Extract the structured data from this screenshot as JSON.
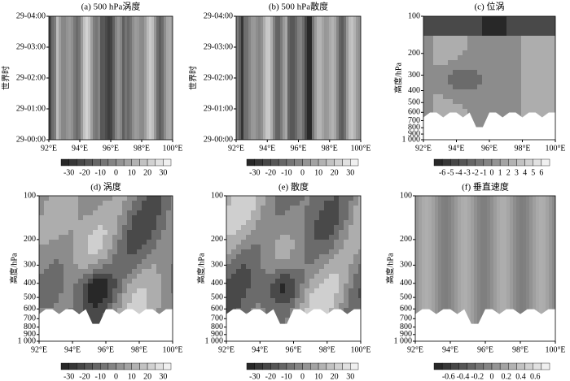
{
  "chart_data": [
    {
      "type": "contour",
      "title": "(a) 500 hPa涡度",
      "ylabel": "世界时",
      "xlim": [
        92,
        100
      ],
      "xticks": [
        {
          "value": 92,
          "label": "92°E"
        },
        {
          "value": 94,
          "label": "94°E"
        },
        {
          "value": 96,
          "label": "96°E"
        },
        {
          "value": 98,
          "label": "98°E"
        },
        {
          "value": 100,
          "label": "100°E"
        }
      ],
      "ylim": [
        0,
        4
      ],
      "yticks": [
        {
          "value": 0,
          "label": "29-00:00"
        },
        {
          "value": 1,
          "label": "29-01:00"
        },
        {
          "value": 2,
          "label": "29-02:00"
        },
        {
          "value": 3,
          "label": "29-03:00"
        },
        {
          "value": 4,
          "label": "29-04:00"
        }
      ],
      "colorbar_lim": [
        -35,
        35
      ],
      "colorbar_ticks": [
        -30,
        -20,
        -10,
        0,
        10,
        20,
        30
      ]
    },
    {
      "type": "contour",
      "title": "(b) 500 hPa散度",
      "ylabel": "世界时",
      "xlim": [
        92,
        100
      ],
      "xticks": [
        {
          "value": 92,
          "label": "92°E"
        },
        {
          "value": 94,
          "label": "94°E"
        },
        {
          "value": 96,
          "label": "96°E"
        },
        {
          "value": 98,
          "label": "98°E"
        },
        {
          "value": 100,
          "label": "100°E"
        }
      ],
      "ylim": [
        0,
        4
      ],
      "yticks": [
        {
          "value": 0,
          "label": "29-00:00"
        },
        {
          "value": 1,
          "label": "29-01:00"
        },
        {
          "value": 2,
          "label": "29-02:00"
        },
        {
          "value": 3,
          "label": "29-03:00"
        },
        {
          "value": 4,
          "label": "29-04:00"
        }
      ],
      "colorbar_lim": [
        -35,
        35
      ],
      "colorbar_ticks": [
        -30,
        -20,
        -10,
        0,
        10,
        20,
        30
      ]
    },
    {
      "type": "contour",
      "title": "(c) 位涡",
      "ylabel": "高度/hPa",
      "log_y": true,
      "xlim": [
        92,
        100
      ],
      "xticks": [
        {
          "value": 92,
          "label": "92°E"
        },
        {
          "value": 94,
          "label": "94°E"
        },
        {
          "value": 96,
          "label": "96°E"
        },
        {
          "value": 98,
          "label": "98°E"
        },
        {
          "value": 100,
          "label": "100°E"
        }
      ],
      "ylim": [
        1000,
        100
      ],
      "yticks": [
        100,
        200,
        300,
        400,
        500,
        600,
        700,
        800,
        900,
        {
          "value": 1000,
          "label": "1 000"
        }
      ],
      "colorbar_lim": [
        -7,
        7
      ],
      "colorbar_ticks": [
        -6,
        -5,
        -4,
        -3,
        -2,
        -1,
        0,
        1,
        2,
        3,
        4,
        5,
        6
      ]
    },
    {
      "type": "contour",
      "title": "(d) 涡度",
      "ylabel": "高度/hPa",
      "log_y": true,
      "xlim": [
        92,
        100
      ],
      "xticks": [
        {
          "value": 92,
          "label": "92°E"
        },
        {
          "value": 94,
          "label": "94°E"
        },
        {
          "value": 96,
          "label": "96°E"
        },
        {
          "value": 98,
          "label": "98°E"
        },
        {
          "value": 100,
          "label": "100°E"
        }
      ],
      "ylim": [
        1000,
        100
      ],
      "yticks": [
        100,
        200,
        300,
        400,
        500,
        600,
        700,
        800,
        900,
        {
          "value": 1000,
          "label": "1 000"
        }
      ],
      "colorbar_lim": [
        -35,
        35
      ],
      "colorbar_ticks": [
        -30,
        -20,
        -10,
        0,
        10,
        20,
        30
      ]
    },
    {
      "type": "contour",
      "title": "(e) 散度",
      "ylabel": "高度/hPa",
      "log_y": true,
      "xlim": [
        92,
        100
      ],
      "xticks": [
        {
          "value": 92,
          "label": "92°E"
        },
        {
          "value": 94,
          "label": "94°E"
        },
        {
          "value": 96,
          "label": "96°E"
        },
        {
          "value": 98,
          "label": "98°E"
        },
        {
          "value": 100,
          "label": "100°E"
        }
      ],
      "ylim": [
        1000,
        100
      ],
      "yticks": [
        100,
        200,
        300,
        400,
        500,
        600,
        700,
        800,
        900,
        {
          "value": 1000,
          "label": "1 000"
        }
      ],
      "colorbar_lim": [
        -35,
        35
      ],
      "colorbar_ticks": [
        -30,
        -20,
        -10,
        0,
        10,
        20,
        30
      ]
    },
    {
      "type": "contour",
      "title": "(f) 垂直速度",
      "ylabel": "高度/hPa",
      "log_y": true,
      "xlim": [
        92,
        100
      ],
      "xticks": [
        {
          "value": 92,
          "label": "92°E"
        },
        {
          "value": 94,
          "label": "94°E"
        },
        {
          "value": 96,
          "label": "96°E"
        },
        {
          "value": 98,
          "label": "98°E"
        },
        {
          "value": 100,
          "label": "100°E"
        }
      ],
      "ylim": [
        1000,
        100
      ],
      "yticks": [
        100,
        200,
        300,
        400,
        500,
        600,
        700,
        800,
        900,
        {
          "value": 1000,
          "label": "1 000"
        }
      ],
      "colorbar_lim": [
        -0.8,
        0.8
      ],
      "colorbar_ticks": [
        -0.6,
        -0.4,
        -0.2,
        0,
        0.2,
        0.4,
        0.6
      ]
    }
  ]
}
